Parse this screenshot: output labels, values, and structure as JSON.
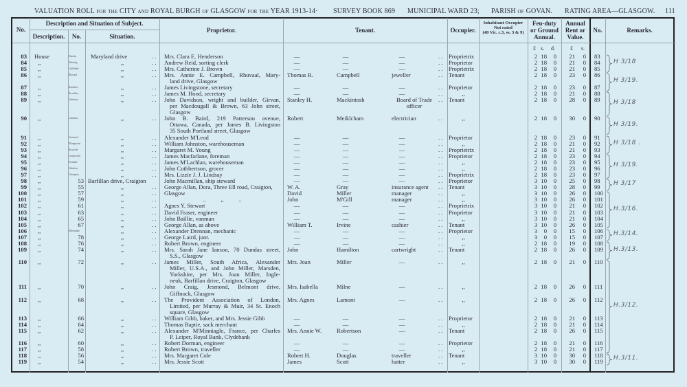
{
  "header": {
    "title": "VALUATION ROLL for the CITY and ROYAL BURGH of GLASGOW for the YEAR 1913-14·",
    "survey_book": "SURVEY BOOK 869",
    "ward": "MUNICIPAL WARD 23;",
    "parish": "PARISH of GOVAN.",
    "rating_area": "RATING AREA—GLASGOW.",
    "page_number": "111"
  },
  "columns": {
    "no": "No.",
    "description_group": "Description and Situation of Subject.",
    "description": "Description.",
    "number": "No.",
    "situation": "Situation.",
    "proprietor": "Proprietor.",
    "tenant": "Tenant.",
    "occupier": "Occupier.",
    "inhabitant": "Inhabitant Occupier\nNot rated\n(48 Vic. c.3, ss. 3 & 9)",
    "feu_duty": "Feu-duty\nor Ground\nAnnual.",
    "annual_rent": "Annual\nRent or\nValue.",
    "no_right": "No.",
    "remarks": "Remarks."
  },
  "currency": {
    "pound": "£",
    "shilling": "s.",
    "pence": "d."
  },
  "rows": [
    {
      "no": "83",
      "desc": "House",
      "house": "Dunsky",
      "num": "",
      "situation": "Maryland drive",
      "proprietor": [
        "Mrs. Clara E. Henderson"
      ],
      "tenant": [
        "—",
        "—",
        "—"
      ],
      "occupier": "Proprietrix",
      "feu": [
        "2",
        "18",
        "0"
      ],
      "rent": [
        "21",
        "0"
      ]
    },
    {
      "no": "84",
      "desc": ",,",
      "house": "Winning",
      "num": "",
      "situation": ",,",
      "proprietor": [
        "Andrew Reid, sorting clerk"
      ],
      "tenant": [
        "—",
        "—",
        "—"
      ],
      "occupier": "Proprietor",
      "feu": [
        "2",
        "18",
        "0"
      ],
      "rent": [
        "21",
        "0"
      ]
    },
    {
      "no": "85",
      "desc": ",,",
      "house": "Culleldale",
      "num": "",
      "situation": ",,",
      "proprietor": [
        "Mrs. Catherine J. Brown"
      ],
      "tenant": [
        "—",
        "—",
        "—"
      ],
      "occupier": "Proprietrix",
      "feu": [
        "2",
        "18",
        "0"
      ],
      "rent": [
        "21",
        "0"
      ]
    },
    {
      "no": "86",
      "desc": ",,",
      "house": "Rhuvaal",
      "num": "",
      "situation": ",,",
      "proprietor": [
        "Mrs. Annie E. Campbell, Rhuvaal, Mary-",
        "land drive, Glasgow"
      ],
      "tenant": [
        "Thomas R.",
        "Campbell",
        "jeweller"
      ],
      "occupier": "Tenant",
      "feu": [
        "2",
        "18",
        "0"
      ],
      "rent": [
        "23",
        "0"
      ]
    },
    {
      "no": "87",
      "desc": ",,",
      "house": "Robislaw",
      "num": "",
      "situation": ",,",
      "proprietor": [
        "James Livingstone, secretary"
      ],
      "tenant": [
        "—",
        "—",
        "—"
      ],
      "occupier": "Proprietor",
      "feu": [
        "2",
        "18",
        "0"
      ],
      "rent": [
        "23",
        "0"
      ]
    },
    {
      "no": "88",
      "desc": ",,",
      "house": "Rowallan",
      "num": "",
      "situation": ",,",
      "proprietor": [
        "James M. Hood, secretary"
      ],
      "tenant": [
        "—",
        "—",
        "—"
      ],
      "occupier": ",,",
      "feu": [
        "2",
        "18",
        "0"
      ],
      "rent": [
        "21",
        "0"
      ]
    },
    {
      "no": "89",
      "desc": ",,",
      "house": "Glenburn",
      "num": "",
      "situation": ",,",
      "proprietor": [
        "John Davidson, wright and builder, Girvan,",
        "per Macdougall & Brown, 63 John street,",
        "Glasgow"
      ],
      "tenant": [
        "Stanley H.",
        "Mackintosh",
        "Board of Trade\nofficer"
      ],
      "occupier": "Tenant",
      "feu": [
        "2",
        "18",
        "0"
      ],
      "rent": [
        "28",
        "0"
      ]
    },
    {
      "no": "90",
      "desc": ",,",
      "house": "Lalashaw",
      "num": "",
      "situation": ",,",
      "proprietor": [
        "John B. Baird, 219 Patterson avenue,",
        "Ottawa, Canada, per James B. Livingston",
        "35 South Portland street, Glasgow"
      ],
      "tenant": [
        "Robert",
        "Meiklcham",
        "electrician"
      ],
      "occupier": ",,",
      "feu": [
        "2",
        "18",
        "0"
      ],
      "rent": [
        "30",
        "0"
      ]
    },
    {
      "no": "91",
      "desc": ",,",
      "house": "Ormisard",
      "num": "",
      "situation": ",,",
      "proprietor": [
        "Alexander M'Leod"
      ],
      "tenant": [
        "—",
        "—",
        "—"
      ],
      "occupier": "Proprietor",
      "feu": [
        "2",
        "18",
        "0"
      ],
      "rent": [
        "23",
        "0"
      ]
    },
    {
      "no": "92",
      "desc": ",,",
      "house": "Ellangowan",
      "num": "",
      "situation": ",,",
      "proprietor": [
        "William Johnston, warehouseman"
      ],
      "tenant": [
        "—",
        "—",
        "—"
      ],
      "occupier": ",,",
      "feu": [
        "2",
        "18",
        "0"
      ],
      "rent": [
        "21",
        "0"
      ]
    },
    {
      "no": "93",
      "desc": ",,",
      "house": "Rosevale",
      "num": "",
      "situation": ",,",
      "proprietor": [
        "Margaret M. Young"
      ],
      "tenant": [
        "—",
        "—",
        "—"
      ],
      "occupier": "Proprietrix",
      "feu": [
        "2",
        "18",
        "0"
      ],
      "rent": [
        "21",
        "0"
      ]
    },
    {
      "no": "94",
      "desc": ",,",
      "house": "Lennoxvale",
      "num": "",
      "situation": ",,",
      "proprietor": [
        "James Macfarlane, foreman"
      ],
      "tenant": [
        "—",
        "—",
        "—"
      ],
      "occupier": "Proprietor",
      "feu": [
        "2",
        "18",
        "0"
      ],
      "rent": [
        "23",
        "0"
      ]
    },
    {
      "no": "95",
      "desc": ",,",
      "house": "Ferndale",
      "num": "",
      "situation": ",,",
      "proprietor": [
        "James M'Lachlan, warehouseman"
      ],
      "tenant": [
        "—",
        "—",
        "—"
      ],
      "occupier": ",,",
      "feu": [
        "2",
        "18",
        "0"
      ],
      "rent": [
        "23",
        "0"
      ]
    },
    {
      "no": "96",
      "desc": ",,",
      "house": "Oakshaw",
      "num": "",
      "situation": ",,",
      "proprietor": [
        "John Cuthbertson, grocer"
      ],
      "tenant": [
        "—",
        "—",
        "—"
      ],
      "occupier": ",,",
      "feu": [
        "2",
        "18",
        "0"
      ],
      "rent": [
        "23",
        "0"
      ]
    },
    {
      "no": "97",
      "desc": ",,",
      "house": "Glenapton",
      "num": "",
      "situation": ",,",
      "proprietor": [
        "Mrs. Lizzie J. J. Lindsay"
      ],
      "tenant": [
        "—",
        "—",
        "—"
      ],
      "occupier": "Proprietrix",
      "feu": [
        "2",
        "18",
        "0"
      ],
      "rent": [
        "23",
        "0"
      ]
    },
    {
      "no": "98",
      "desc": ",,",
      "house": "",
      "num": "53",
      "situation": "Barfillan drive, Craigton",
      "proprietor": [
        "John Macmillan, ship steward"
      ],
      "tenant": [
        "—",
        "—",
        "—"
      ],
      "occupier": "Proprietor",
      "feu": [
        "3",
        "10",
        "0"
      ],
      "rent": [
        "25",
        "0"
      ]
    },
    {
      "no": "99",
      "desc": ",,",
      "house": "",
      "num": "55",
      "situation": ",,",
      "proprietor": [
        "George Allan, Dora, Three Ell road, Craigton,"
      ],
      "tenant": [
        "W. A.",
        "Gray",
        "insurance agent"
      ],
      "occupier": "Tenant",
      "feu": [
        "3",
        "10",
        "0"
      ],
      "rent": [
        "28",
        "0"
      ]
    },
    {
      "no": "100",
      "desc": ",,",
      "house": "",
      "num": "57",
      "situation": ",,",
      "proprietor": [
        "Glasgow"
      ],
      "tenant": [
        "David",
        "Miller",
        "manager"
      ],
      "occupier": ",,",
      "feu": [
        "3",
        "10",
        "0"
      ],
      "rent": [
        "26",
        "0"
      ]
    },
    {
      "no": "101",
      "desc": ",,",
      "house": "",
      "num": "59",
      "situation": ",,",
      "proprietor": [
        "..          ,,          .."
      ],
      "tenant": [
        "John",
        "M'Gill",
        "manager"
      ],
      "occupier": ",,",
      "feu": [
        "3",
        "10",
        "0"
      ],
      "rent": [
        "26",
        "0"
      ]
    },
    {
      "no": "102",
      "desc": ",,",
      "house": "",
      "num": "61",
      "situation": ",,",
      "proprietor": [
        "Agnes Y. Stewart"
      ],
      "tenant": [
        "—",
        "—",
        "—"
      ],
      "occupier": "Proprietrix",
      "feu": [
        "3",
        "10",
        "0"
      ],
      "rent": [
        "21",
        "0"
      ]
    },
    {
      "no": "103",
      "desc": ",,",
      "house": "",
      "num": "63",
      "situation": ",,",
      "proprietor": [
        "David Fraser, engineer"
      ],
      "tenant": [
        "—",
        "—",
        "—"
      ],
      "occupier": "Proprietor",
      "feu": [
        "3",
        "10",
        "0"
      ],
      "rent": [
        "21",
        "0"
      ]
    },
    {
      "no": "104",
      "desc": ",,",
      "house": "",
      "num": "65",
      "situation": ",,",
      "proprietor": [
        "John Baillie, vanman"
      ],
      "tenant": [
        "—",
        "—",
        "—"
      ],
      "occupier": ",,",
      "feu": [
        "3",
        "10",
        "0"
      ],
      "rent": [
        "21",
        "0"
      ]
    },
    {
      "no": "105",
      "desc": ",,",
      "house": "",
      "num": "67",
      "situation": ",,",
      "proprietor": [
        "George Allan, as above"
      ],
      "tenant": [
        "William T.",
        "Irvine",
        "cashier"
      ],
      "occupier": "Tenant",
      "feu": [
        "3",
        "10",
        "0"
      ],
      "rent": [
        "26",
        "0"
      ]
    },
    {
      "no": "106",
      "desc": ",,",
      "house": "Helensdale",
      "num": "",
      "situation": ",,",
      "proprietor": [
        "Alexander Drennan, mechanic"
      ],
      "tenant": [
        "—",
        "—",
        "—"
      ],
      "occupier": "Proprietor",
      "feu": [
        "3",
        "0",
        "0"
      ],
      "rent": [
        "15",
        "0"
      ]
    },
    {
      "no": "107",
      "desc": ",,",
      "house": "",
      "num": "78",
      "situation": ",,",
      "proprietor": [
        "George Laird, junr."
      ],
      "tenant": [
        "—",
        "—",
        "—"
      ],
      "occupier": ",,",
      "feu": [
        "3",
        "0",
        "0"
      ],
      "rent": [
        "15",
        "0"
      ]
    },
    {
      "no": "108",
      "desc": ",,",
      "house": "",
      "num": "76",
      "situation": ",,",
      "proprietor": [
        "Robert Brown, engineer"
      ],
      "tenant": [
        "—",
        "—",
        "—"
      ],
      "occupier": ",,",
      "feu": [
        "2",
        "18",
        "0"
      ],
      "rent": [
        "19",
        "0"
      ]
    },
    {
      "no": "109",
      "desc": ",,",
      "house": "",
      "num": "74",
      "situation": ",,",
      "proprietor": [
        "Mrs. Sarah Jane Ianson, 70 Dundas street,",
        "S.S., Glasgow"
      ],
      "tenant": [
        "John",
        "Hamilton",
        "cartwright"
      ],
      "occupier": "Tenant",
      "feu": [
        "2",
        "18",
        "0"
      ],
      "rent": [
        "26",
        "0"
      ]
    },
    {
      "no": "110",
      "desc": ",,",
      "house": "",
      "num": "72",
      "situation": ",,",
      "proprietor": [
        "James Miller, South Africa, Alexander",
        "Miller, U.S.A., and John Miller, Marsden,",
        "Yorkshire, per Mrs. Joan Miller, Ingle-",
        "neuk, Barfillan drive, Craigton, Glasgow"
      ],
      "tenant": [
        "Mrs. Joan",
        "Miller",
        "—"
      ],
      "occupier": ",,",
      "feu": [
        "2",
        "18",
        "0"
      ],
      "rent": [
        "21",
        "0"
      ]
    },
    {
      "no": "111",
      "desc": ",,",
      "house": "",
      "num": "70",
      "situation": ",,",
      "proprietor": [
        "John Craig, Jesmond, Belmont drive,",
        "Giffnock, Glasgow"
      ],
      "tenant": [
        "Mrs. Isabella",
        "Milne",
        "—"
      ],
      "occupier": ",,",
      "feu": [
        "2",
        "18",
        "0"
      ],
      "rent": [
        "26",
        "0"
      ]
    },
    {
      "no": "112",
      "desc": ",,",
      "house": "",
      "num": "68",
      "situation": ",,",
      "proprietor": [
        "The Provident Association of London,",
        "Limited, per Murray & Muir, 34 St. Enoch",
        "square, Glasgow"
      ],
      "tenant": [
        "Mrs. Agnes",
        "Lamont",
        "—"
      ],
      "occupier": ",,",
      "feu": [
        "2",
        "18",
        "0"
      ],
      "rent": [
        "26",
        "0"
      ]
    },
    {
      "no": "113",
      "desc": ",,",
      "house": "",
      "num": "66",
      "situation": ",,",
      "proprietor": [
        "William Gibb, baker, and Mrs. Jessie Gibb"
      ],
      "tenant": [
        "—",
        "—",
        "—"
      ],
      "occupier": "Proprietor",
      "feu": [
        "2",
        "18",
        "0"
      ],
      "rent": [
        "21",
        "0"
      ]
    },
    {
      "no": "114",
      "desc": ",,",
      "house": "",
      "num": "64",
      "situation": ",,",
      "proprietor": [
        "Thomas Baptie, sack merchant"
      ],
      "tenant": [
        "—",
        "—",
        "—"
      ],
      "occupier": ",,",
      "feu": [
        "2",
        "18",
        "0"
      ],
      "rent": [
        "21",
        "0"
      ]
    },
    {
      "no": "115",
      "desc": ",,",
      "house": "",
      "num": "62",
      "situation": ",,",
      "proprietor": [
        "Alexander M'Minniagle, France, per Charles",
        "P. Leiper, Royal Bank, Clydebank"
      ],
      "tenant": [
        "Mrs. Annie W.",
        "Robertson",
        "—"
      ],
      "occupier": "Tenant",
      "feu": [
        "2",
        "18",
        "0"
      ],
      "rent": [
        "26",
        "0"
      ]
    },
    {
      "no": "116",
      "desc": ",,",
      "house": "",
      "num": "60",
      "situation": ",,",
      "proprietor": [
        "Robert Dorman, engineer"
      ],
      "tenant": [
        "—",
        "—",
        "—"
      ],
      "occupier": "Proprietor",
      "feu": [
        "2",
        "18",
        "0"
      ],
      "rent": [
        "21",
        "0"
      ]
    },
    {
      "no": "117",
      "desc": ",,",
      "house": "",
      "num": "58",
      "situation": ",,",
      "proprietor": [
        "Robert Brown, traveller"
      ],
      "tenant": [
        "—",
        "—",
        "—"
      ],
      "occupier": ",,",
      "feu": [
        "2",
        "18",
        "0"
      ],
      "rent": [
        "21",
        "0"
      ]
    },
    {
      "no": "118",
      "desc": ",,",
      "house": "",
      "num": "56",
      "situation": ",,",
      "proprietor": [
        "Mrs. Margaret Cole"
      ],
      "tenant": [
        "Robert H.",
        "Douglas",
        "traveller"
      ],
      "occupier": "Tenant",
      "feu": [
        "3",
        "10",
        "0"
      ],
      "rent": [
        "30",
        "0"
      ]
    },
    {
      "no": "119",
      "desc": ",,",
      "house": "",
      "num": "54",
      "situation": ",,",
      "proprietor": [
        "Mrs. Jessie Scott"
      ],
      "tenant": [
        "James",
        "Scott",
        "hatter"
      ],
      "occupier": ",,",
      "feu": [
        "3",
        "10",
        "0"
      ],
      "rent": [
        "30",
        "0"
      ]
    }
  ],
  "remarks": [
    {
      "text": "H 3/18",
      "from": "83",
      "to": "85"
    },
    {
      "text": "H 3/19.",
      "from": "86",
      "to": "87"
    },
    {
      "text": "H 3/18",
      "from": "88",
      "to": "89"
    },
    {
      "text": "H 3/19.",
      "from": "90",
      "to": "90"
    },
    {
      "text": "H 3/18 .",
      "from": "91",
      "to": "93"
    },
    {
      "text": "H 3/19.",
      "from": "94",
      "to": "97"
    },
    {
      "text": "H 3/17",
      "from": "98",
      "to": "99"
    },
    {
      "text": "H.3/16.",
      "from": "100",
      "to": "105"
    },
    {
      "text": "H.3/14.",
      "from": "106",
      "to": "107"
    },
    {
      "text": "H.3/13.",
      "from": "108",
      "to": "109"
    },
    {
      "text": "H.3/12.",
      "from": "110",
      "to": "117"
    },
    {
      "text": "H.3/11.",
      "from": "118",
      "to": "119"
    }
  ],
  "colors": {
    "paper": "#d9ebf3",
    "ink": "#2b2b36",
    "pencil": "#59606b"
  }
}
